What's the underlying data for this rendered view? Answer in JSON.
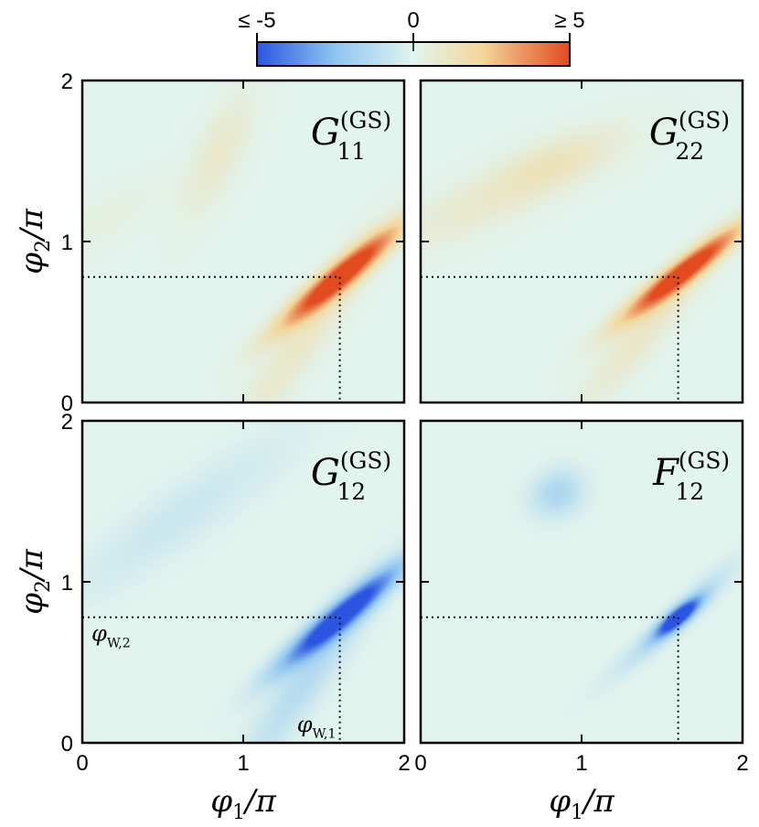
{
  "chart_data": {
    "type": "heatmap",
    "colorbar": {
      "min_label": "≤ -5",
      "mid_label": "0",
      "max_label": "≥ 5",
      "range": [
        -5,
        5
      ],
      "colors": [
        "#2b55e0",
        "#e2f4ee",
        "#e24a1f"
      ]
    },
    "x_axis": {
      "label": "φ1/π",
      "var": "φ",
      "sub": "1",
      "ticks": [
        "0",
        "1",
        "2"
      ],
      "range": [
        0,
        2
      ]
    },
    "y_axis": {
      "label": "φ2/π",
      "var": "φ",
      "sub": "2",
      "ticks": [
        "0",
        "1",
        "2"
      ],
      "range": [
        0,
        2
      ]
    },
    "annotation": {
      "phi_W1": 1.6,
      "phi_W2": 0.78,
      "label_w1": {
        "var": "φ",
        "sub": "W,1"
      },
      "label_w2": {
        "var": "φ",
        "sub": "W,2"
      }
    },
    "panels": [
      {
        "id": "G11",
        "title": {
          "letter": "G",
          "sub": "11",
          "sup": "(GS)"
        },
        "features": [
          {
            "cx": 1.6,
            "cy": 0.78,
            "sx": 0.33,
            "sy": 0.055,
            "angle": 40,
            "amp": 6.0
          },
          {
            "cx": 1.38,
            "cy": 0.4,
            "sx": 0.55,
            "sy": 0.09,
            "angle": 55,
            "amp": 1.0
          },
          {
            "cx": 0.85,
            "cy": 1.55,
            "sx": 0.3,
            "sy": 0.1,
            "angle": 65,
            "amp": 0.9
          },
          {
            "cx": 0.15,
            "cy": 1.15,
            "sx": 0.3,
            "sy": 0.1,
            "angle": 30,
            "amp": 0.4
          }
        ]
      },
      {
        "id": "G22",
        "title": {
          "letter": "G",
          "sub": "22",
          "sup": "(GS)"
        },
        "features": [
          {
            "cx": 1.62,
            "cy": 0.8,
            "sx": 0.32,
            "sy": 0.05,
            "angle": 38,
            "amp": 6.0
          },
          {
            "cx": 1.4,
            "cy": 0.45,
            "sx": 0.45,
            "sy": 0.08,
            "angle": 50,
            "amp": 1.0
          },
          {
            "cx": 0.5,
            "cy": 1.3,
            "sx": 0.55,
            "sy": 0.12,
            "angle": 25,
            "amp": 0.9
          },
          {
            "cx": 0.85,
            "cy": 1.5,
            "sx": 0.25,
            "sy": 0.1,
            "angle": 20,
            "amp": 0.7
          }
        ]
      },
      {
        "id": "G12",
        "title": {
          "letter": "G",
          "sub": "12",
          "sup": "(GS)"
        },
        "features": [
          {
            "cx": 1.6,
            "cy": 0.78,
            "sx": 0.33,
            "sy": 0.055,
            "angle": 40,
            "amp": -6.0
          },
          {
            "cx": 1.4,
            "cy": 0.4,
            "sx": 0.5,
            "sy": 0.09,
            "angle": 55,
            "amp": -1.3
          },
          {
            "cx": 0.6,
            "cy": 1.4,
            "sx": 0.6,
            "sy": 0.12,
            "angle": 35,
            "amp": -0.7
          }
        ]
      },
      {
        "id": "F12",
        "title": {
          "letter": "F",
          "sub": "12",
          "sup": "(GS)"
        },
        "features": [
          {
            "cx": 1.6,
            "cy": 0.78,
            "sx": 0.12,
            "sy": 0.035,
            "angle": 40,
            "amp": -6.0
          },
          {
            "cx": 1.5,
            "cy": 0.68,
            "sx": 0.3,
            "sy": 0.05,
            "angle": 40,
            "amp": -1.2
          },
          {
            "cx": 0.85,
            "cy": 1.55,
            "sx": 0.12,
            "sy": 0.1,
            "angle": 30,
            "amp": -1.6
          },
          {
            "cx": 1.8,
            "cy": 1.0,
            "sx": 0.2,
            "sy": 0.05,
            "angle": 40,
            "amp": -0.6
          }
        ]
      }
    ]
  }
}
